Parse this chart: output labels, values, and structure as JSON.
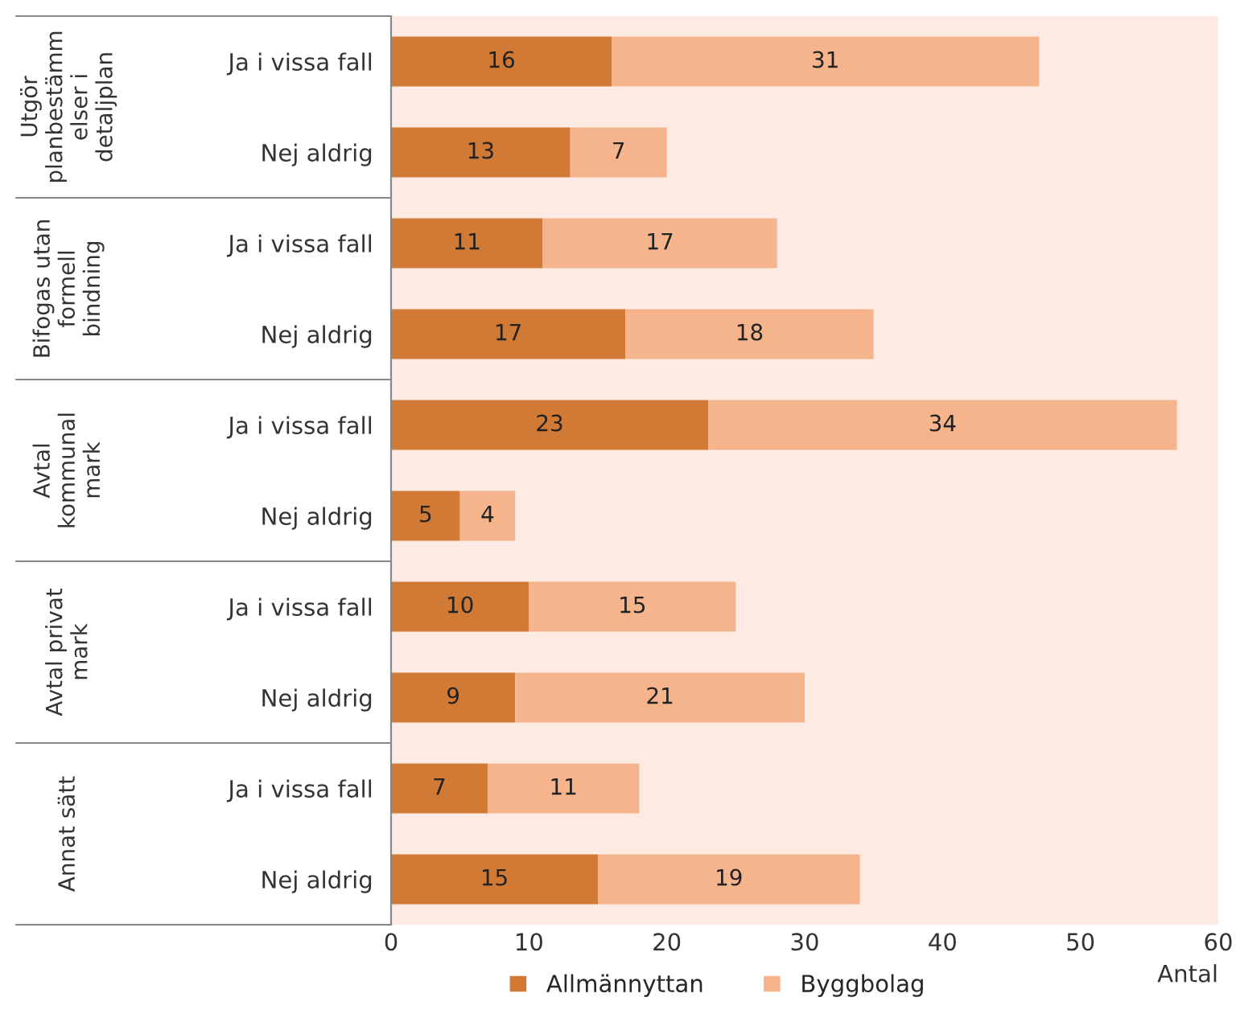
{
  "chart_data": {
    "type": "bar",
    "orientation": "horizontal",
    "stacked": true,
    "categories": [
      "Ja i vissa fall",
      "Nej aldrig",
      "Ja i vissa fall",
      "Nej aldrig",
      "Ja i vissa fall",
      "Nej aldrig",
      "Ja i vissa fall",
      "Nej aldrig",
      "Ja i vissa fall",
      "Nej aldrig"
    ],
    "series": [
      {
        "name": "Allmännyttan",
        "color": "#d07a35",
        "values": [
          16,
          13,
          11,
          17,
          23,
          5,
          10,
          9,
          7,
          15
        ]
      },
      {
        "name": "Byggbolag",
        "color": "#f6b48c",
        "values": [
          31,
          7,
          17,
          18,
          34,
          4,
          15,
          21,
          11,
          19
        ]
      }
    ],
    "xlim": [
      0,
      60
    ],
    "xticks": [
      0,
      10,
      20,
      30,
      40,
      50,
      60
    ],
    "xlabel": "Antal",
    "annotations": [
      "Utgör\nplanbestämm\nelser i\ndetaljplan",
      "Bifogas utan\nformell\nbindning",
      "Avtal\nkommunal\nmark",
      "Avtal privat\nmark",
      "Annat sätt"
    ],
    "data_labels": true,
    "legend": "bottom",
    "grid": false
  }
}
